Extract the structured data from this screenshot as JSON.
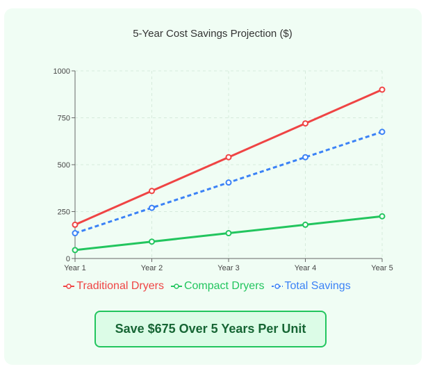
{
  "chart_data": {
    "type": "line",
    "title": "5-Year Cost Savings Projection ($)",
    "xlabel": "",
    "ylabel": "",
    "categories": [
      "Year 1",
      "Year 2",
      "Year 3",
      "Year 4",
      "Year 5"
    ],
    "ylim": [
      0,
      1000
    ],
    "yticks": [
      0,
      250,
      500,
      750,
      1000
    ],
    "grid": true,
    "legend_position": "bottom",
    "series": [
      {
        "name": "Traditional Dryers",
        "color": "#ef4444",
        "dashed": false,
        "values": [
          180,
          360,
          540,
          720,
          900
        ]
      },
      {
        "name": "Compact Dryers",
        "color": "#22c55e",
        "dashed": false,
        "values": [
          45,
          90,
          135,
          180,
          225
        ]
      },
      {
        "name": "Total Savings",
        "color": "#3b82f6",
        "dashed": true,
        "values": [
          135,
          270,
          405,
          540,
          675
        ]
      }
    ]
  },
  "cta": {
    "label": "Save $675 Over 5 Years Per Unit"
  }
}
